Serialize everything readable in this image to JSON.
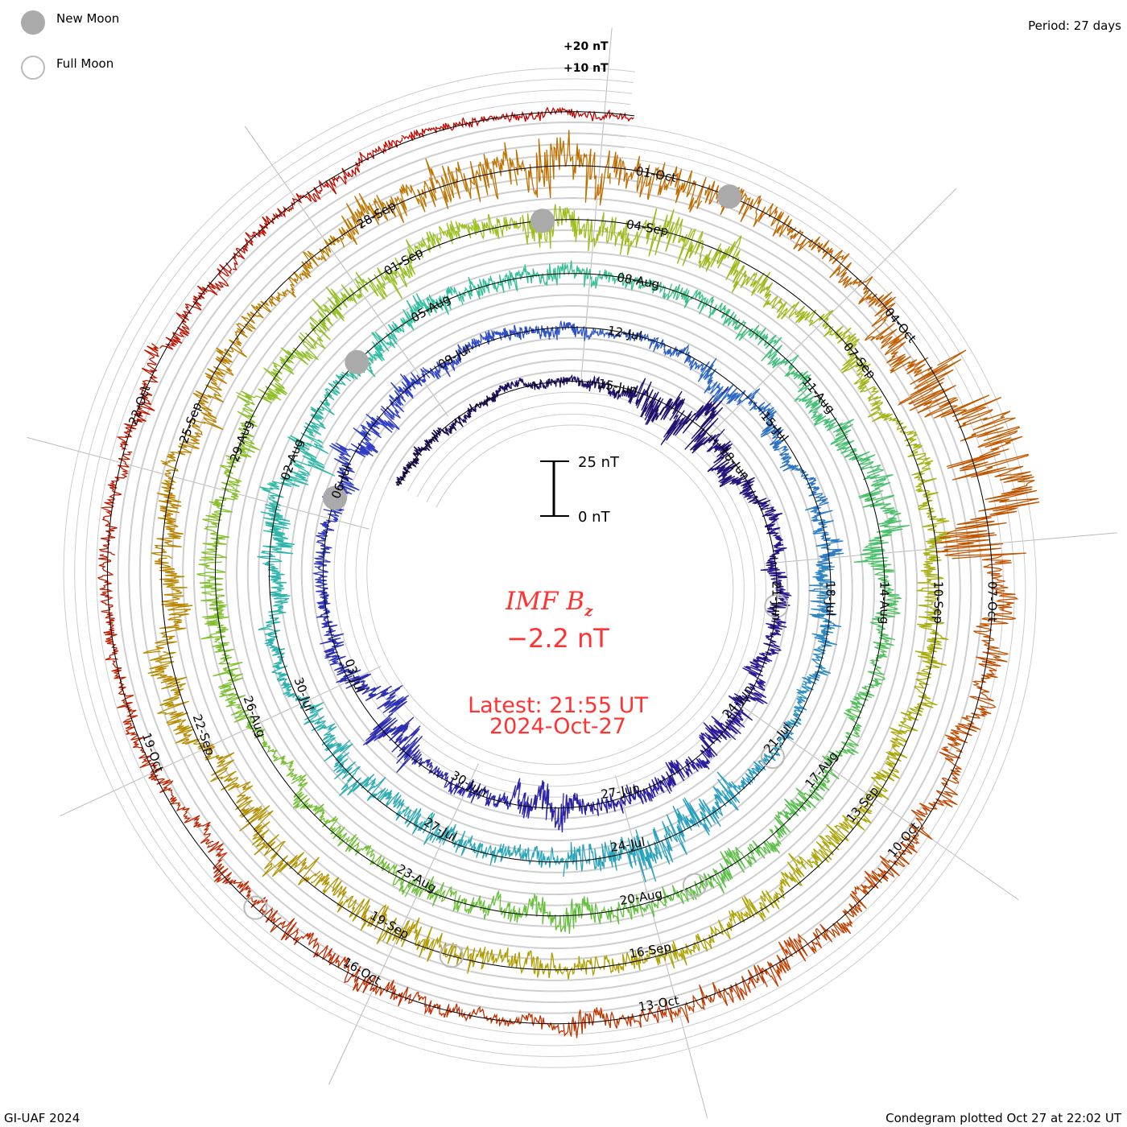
{
  "legend": {
    "new_moon": "New Moon",
    "full_moon": "Full Moon",
    "new_moon_color": "#aaaaaa",
    "full_moon_color": "#bbbbbb"
  },
  "period_label": "Period: 27 days",
  "footer_left": "GI-UAF 2024",
  "footer_right": "Condegram plotted Oct 27 at 22:02 UT",
  "scale_bar": {
    "top": "25 nT",
    "bottom": "0 nT"
  },
  "level_labels": [
    "+20 nT",
    "+10 nT"
  ],
  "title": {
    "main": "IMF B",
    "sub": "z",
    "value": "−2.2 nT",
    "latest": "Latest: 21:55 UT",
    "date": "2024-Oct-27",
    "color": "#ff3333"
  },
  "chart_data": {
    "type": "line",
    "subtype": "spiral condegram",
    "title": "IMF Bz",
    "units": "nT",
    "period_days": 27,
    "reference_date": "15-Jun",
    "start_day": -5.25,
    "end_day": 134.9,
    "grid_levels_nT": [
      -20,
      -15,
      -10,
      -5,
      0,
      5,
      10,
      15,
      20
    ],
    "date_labels": [
      "15-Jun",
      "18-Jun",
      "21-Jun",
      "24-Jun",
      "27-Jun",
      "30-Jun",
      "03-Jul",
      "06-Jul",
      "09-Jul",
      "12-Jul",
      "15-Jul",
      "18-Jul",
      "21-Jul",
      "24-Jul",
      "27-Jul",
      "30-Jul",
      "02-Aug",
      "05-Aug",
      "08-Aug",
      "11-Aug",
      "14-Aug",
      "17-Aug",
      "20-Aug",
      "23-Aug",
      "26-Aug",
      "29-Aug",
      "01-Sep",
      "04-Sep",
      "07-Sep",
      "10-Sep",
      "13-Sep",
      "16-Sep",
      "19-Sep",
      "22-Sep",
      "25-Sep",
      "28-Sep",
      "01-Oct",
      "04-Oct",
      "07-Oct",
      "10-Oct",
      "13-Oct",
      "16-Oct",
      "19-Oct",
      "22-Oct"
    ],
    "new_moon_days": [
      21,
      50,
      80,
      109
    ],
    "full_moon_days": [
      6.5,
      36,
      65,
      95,
      124
    ],
    "daily_activity_nT": [
      2,
      2,
      2,
      2,
      2,
      3,
      8,
      9,
      5,
      4,
      3,
      4,
      4,
      5,
      6,
      5,
      4,
      4,
      8,
      4,
      3,
      9,
      7,
      4,
      3,
      3,
      5,
      6,
      5,
      3,
      3,
      3,
      2,
      3,
      6,
      4,
      3,
      5,
      6,
      4,
      3,
      3,
      7,
      8,
      6,
      4,
      5,
      5,
      6,
      4,
      3,
      4,
      6,
      7,
      4,
      5,
      5,
      4,
      4,
      3,
      4,
      5,
      4,
      6,
      7,
      5,
      4,
      4,
      5,
      6,
      4,
      5,
      6,
      5,
      4,
      4,
      3,
      5,
      6,
      5,
      5,
      6,
      7,
      6,
      5,
      7,
      9,
      8,
      6,
      5,
      4,
      5,
      6,
      5,
      5,
      6,
      5,
      4,
      4,
      5,
      7,
      6,
      7,
      5,
      6,
      6,
      5,
      5,
      5,
      4,
      7,
      9,
      11,
      8,
      6,
      5,
      7,
      16,
      18,
      7,
      6,
      5,
      5,
      6,
      5,
      4,
      3,
      4,
      5,
      4,
      4,
      3,
      3,
      3,
      4,
      4,
      3,
      3,
      2,
      2,
      2
    ],
    "color_stops": [
      "#1a0a4a",
      "#2a1a9a",
      "#3040c8",
      "#2aa0c0",
      "#30c0a0",
      "#60c040",
      "#9cc020",
      "#b0a000",
      "#c07000",
      "#c03000",
      "#c00000"
    ]
  }
}
